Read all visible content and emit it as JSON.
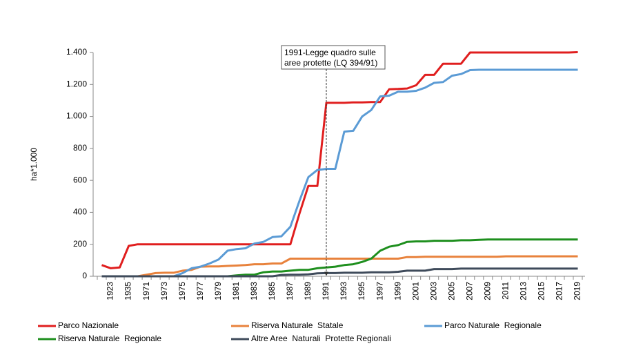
{
  "chart_data": {
    "type": "line",
    "y_label": "ha*1.000",
    "categories": [
      null,
      "1923",
      null,
      "1935",
      null,
      "1971",
      null,
      "1973",
      null,
      "1975",
      null,
      "1977",
      null,
      "1979",
      null,
      "1981",
      null,
      "1983",
      null,
      "1985",
      null,
      "1987",
      null,
      "1989",
      null,
      "1991",
      null,
      "1993",
      null,
      "1995",
      null,
      "1997",
      null,
      "1999",
      null,
      "2001",
      null,
      "2003",
      null,
      "2005",
      null,
      "2007",
      null,
      "2009",
      null,
      "2011",
      null,
      "2013",
      null,
      "2015",
      null,
      "2017",
      null,
      "2019"
    ],
    "series": [
      {
        "name": "Parco Nazionale",
        "color": "#e01e1e",
        "values": [
          70,
          50,
          55,
          190,
          200,
          200,
          200,
          200,
          200,
          200,
          200,
          200,
          200,
          200,
          200,
          200,
          200,
          200,
          200,
          200,
          200,
          200,
          390,
          565,
          565,
          1085,
          1085,
          1085,
          1088,
          1088,
          1090,
          1090,
          1170,
          1172,
          1175,
          1195,
          1260,
          1260,
          1330,
          1330,
          1330,
          1400,
          1400,
          1400,
          1400,
          1400,
          1400,
          1400,
          1400,
          1400,
          1400,
          1400,
          1400,
          1402
        ]
      },
      {
        "name": "Riserva Naturale  Statale",
        "color": "#e8823c",
        "values": [
          null,
          null,
          null,
          null,
          0,
          10,
          20,
          22,
          22,
          35,
          40,
          60,
          62,
          62,
          65,
          67,
          70,
          75,
          75,
          80,
          80,
          110,
          110,
          110,
          110,
          110,
          110,
          110,
          110,
          110,
          110,
          110,
          110,
          110,
          120,
          120,
          122,
          122,
          122,
          122,
          122,
          122,
          122,
          122,
          122,
          125,
          125,
          125,
          125,
          125,
          125,
          125,
          125,
          125
        ]
      },
      {
        "name": "Parco Naturale  Regionale",
        "color": "#5b9bd5",
        "values": [
          null,
          null,
          null,
          null,
          0,
          0,
          0,
          0,
          0,
          20,
          50,
          60,
          80,
          105,
          160,
          170,
          175,
          205,
          215,
          245,
          250,
          310,
          470,
          620,
          665,
          672,
          672,
          905,
          910,
          1000,
          1040,
          1125,
          1130,
          1155,
          1155,
          1160,
          1180,
          1210,
          1215,
          1255,
          1265,
          1290,
          1292,
          1292,
          1292,
          1292,
          1292,
          1292,
          1292,
          1292,
          1292,
          1292,
          1292,
          1292
        ]
      },
      {
        "name": "Riserva Naturale  Regionale",
        "color": "#1e8f1e",
        "values": [
          null,
          null,
          null,
          null,
          0,
          0,
          0,
          0,
          0,
          0,
          0,
          0,
          0,
          0,
          0,
          5,
          10,
          10,
          25,
          30,
          30,
          35,
          40,
          40,
          50,
          55,
          60,
          70,
          75,
          90,
          110,
          160,
          185,
          195,
          215,
          218,
          218,
          222,
          222,
          222,
          225,
          225,
          228,
          230,
          230,
          230,
          230,
          230,
          230,
          230,
          230,
          230,
          230,
          230
        ]
      },
      {
        "name": "Altre Aree  Naturali  Protette Regionali",
        "color": "#3f4b5b",
        "values": [
          0,
          0,
          0,
          0,
          0,
          0,
          0,
          0,
          0,
          0,
          0,
          0,
          0,
          0,
          0,
          0,
          0,
          0,
          0,
          0,
          8,
          10,
          10,
          12,
          18,
          20,
          20,
          22,
          22,
          22,
          25,
          25,
          25,
          28,
          35,
          35,
          35,
          45,
          45,
          45,
          48,
          48,
          48,
          48,
          48,
          48,
          48,
          48,
          48,
          48,
          48,
          48,
          48,
          48
        ]
      }
    ],
    "ylim": [
      0,
      1400
    ],
    "yticks": [
      0,
      200,
      400,
      600,
      800,
      {
        "value": 1000,
        "label": "1.000"
      },
      {
        "value": 1200,
        "label": "1.200"
      },
      {
        "value": 1400,
        "label": "1.400"
      }
    ],
    "annotation": {
      "lines": [
        "1991-Legge quadro sulle",
        "aree protette (LQ 394/91)"
      ],
      "category": "1991"
    },
    "grid": false,
    "legend": "bottom"
  }
}
